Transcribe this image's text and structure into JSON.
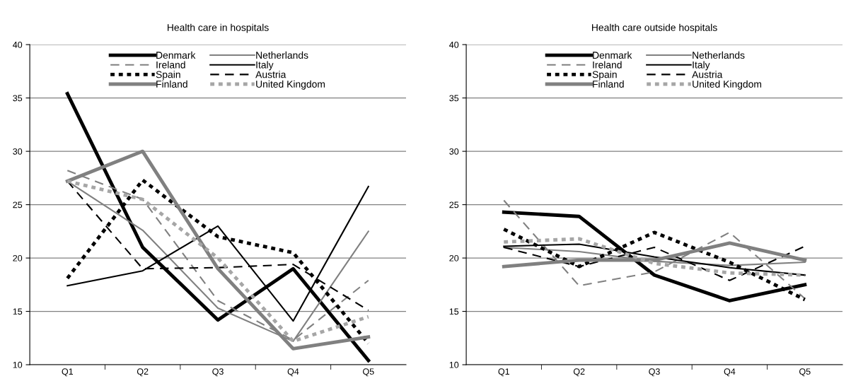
{
  "chart_data": [
    {
      "type": "line",
      "title": "Health care in hospitals",
      "categories": [
        "Q1",
        "Q2",
        "Q3",
        "Q4",
        "Q5"
      ],
      "ylim": [
        10,
        40
      ],
      "yticks": [
        10,
        15,
        20,
        25,
        30,
        35,
        40
      ],
      "grid": "y",
      "legend": "top",
      "marker": "none",
      "series": [
        {
          "name": "Denmark",
          "color": "#000000",
          "line_style": "solid",
          "values": [
            35.4,
            21.0,
            14.2,
            19.0,
            10.4
          ]
        },
        {
          "name": "Netherlands",
          "color": "#808080",
          "line_style": "solid",
          "values": [
            27.2,
            22.6,
            15.3,
            12.2,
            22.5
          ]
        },
        {
          "name": "Ireland",
          "color": "#808080",
          "line_style": "dashed",
          "values": [
            28.2,
            25.5,
            16.0,
            12.3,
            17.9
          ]
        },
        {
          "name": "Italy",
          "color": "#000000",
          "line_style": "solid",
          "values": [
            17.4,
            18.8,
            23.0,
            14.1,
            26.7
          ]
        },
        {
          "name": "Spain",
          "color": "#000000",
          "line_style": "dotted",
          "values": [
            18.1,
            27.3,
            22.0,
            20.5,
            12.0
          ]
        },
        {
          "name": "Austria",
          "color": "#000000",
          "line_style": "dashed",
          "values": [
            27.2,
            19.0,
            19.1,
            19.4,
            15.1
          ]
        },
        {
          "name": "Finland",
          "color": "#808080",
          "line_style": "solid",
          "values": [
            27.2,
            30.0,
            19.0,
            11.5,
            12.6
          ]
        },
        {
          "name": "United Kingdom",
          "color": "#a6a6a6",
          "line_style": "dotted",
          "values": [
            27.2,
            25.5,
            20.0,
            12.2,
            14.5
          ]
        }
      ]
    },
    {
      "type": "line",
      "title": "Health care outside hospitals",
      "categories": [
        "Q1",
        "Q2",
        "Q3",
        "Q4",
        "Q5"
      ],
      "ylim": [
        10,
        40
      ],
      "yticks": [
        10,
        15,
        20,
        25,
        30,
        35,
        40
      ],
      "grid": "y",
      "legend": "top",
      "marker": "none",
      "series": [
        {
          "name": "Denmark",
          "color": "#000000",
          "line_style": "solid",
          "values": [
            24.3,
            23.9,
            18.4,
            16.0,
            17.5
          ]
        },
        {
          "name": "Netherlands",
          "color": "#808080",
          "line_style": "solid",
          "values": [
            21.0,
            20.6,
            19.7,
            19.3,
            19.6
          ]
        },
        {
          "name": "Ireland",
          "color": "#808080",
          "line_style": "dashed",
          "values": [
            25.4,
            17.4,
            18.7,
            22.4,
            16.2
          ]
        },
        {
          "name": "Italy",
          "color": "#000000",
          "line_style": "solid",
          "values": [
            21.1,
            21.3,
            20.1,
            19.1,
            18.4
          ]
        },
        {
          "name": "Spain",
          "color": "#000000",
          "line_style": "dotted",
          "values": [
            22.7,
            19.2,
            22.4,
            19.6,
            16.1
          ]
        },
        {
          "name": "Austria",
          "color": "#000000",
          "line_style": "dashed",
          "values": [
            21.0,
            19.2,
            21.0,
            17.9,
            21.1
          ]
        },
        {
          "name": "Finland",
          "color": "#808080",
          "line_style": "solid",
          "values": [
            19.2,
            19.8,
            19.8,
            21.4,
            19.8
          ]
        },
        {
          "name": "United Kingdom",
          "color": "#a6a6a6",
          "line_style": "dotted",
          "values": [
            21.5,
            21.8,
            19.5,
            18.6,
            18.4
          ]
        }
      ]
    }
  ]
}
